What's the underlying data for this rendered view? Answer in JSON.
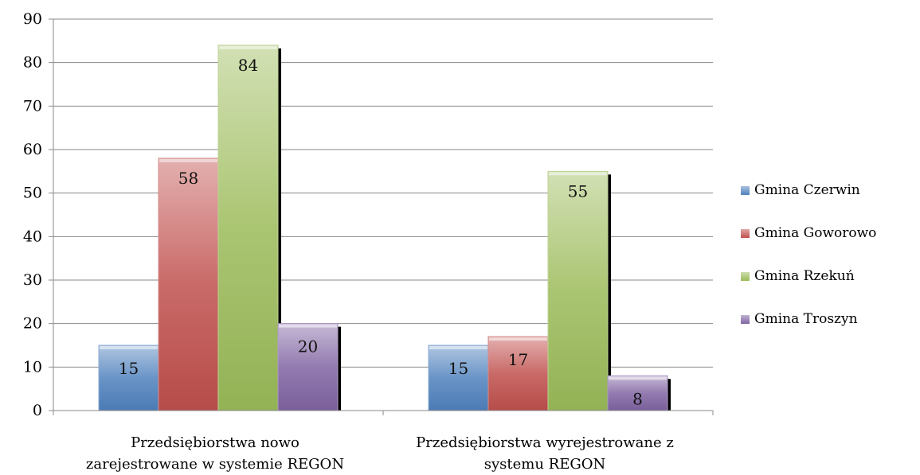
{
  "chart_data": {
    "type": "bar",
    "title": "",
    "xlabel": "",
    "ylabel": "",
    "ylim": [
      0,
      90
    ],
    "yticks": [
      0,
      10,
      20,
      30,
      40,
      50,
      60,
      70,
      80,
      90
    ],
    "grid": true,
    "legend_position": "right",
    "categories": [
      [
        "Przedsiębiorstwa nowo",
        "zarejestrowane w systemie REGON"
      ],
      [
        "Przedsiębiorstwa wyrejestrowane z",
        "systemu REGON"
      ]
    ],
    "series": [
      {
        "name": "Gmina Czerwin",
        "values": [
          15,
          15
        ],
        "color": "#4f81bd"
      },
      {
        "name": "Gmina Goworowo",
        "values": [
          58,
          17
        ],
        "color": "#c0504d"
      },
      {
        "name": "Gmina Rzekuń",
        "values": [
          84,
          55
        ],
        "color": "#9bbb59"
      },
      {
        "name": "Gmina Troszyn",
        "values": [
          20,
          8
        ],
        "color": "#8064a2"
      }
    ]
  }
}
